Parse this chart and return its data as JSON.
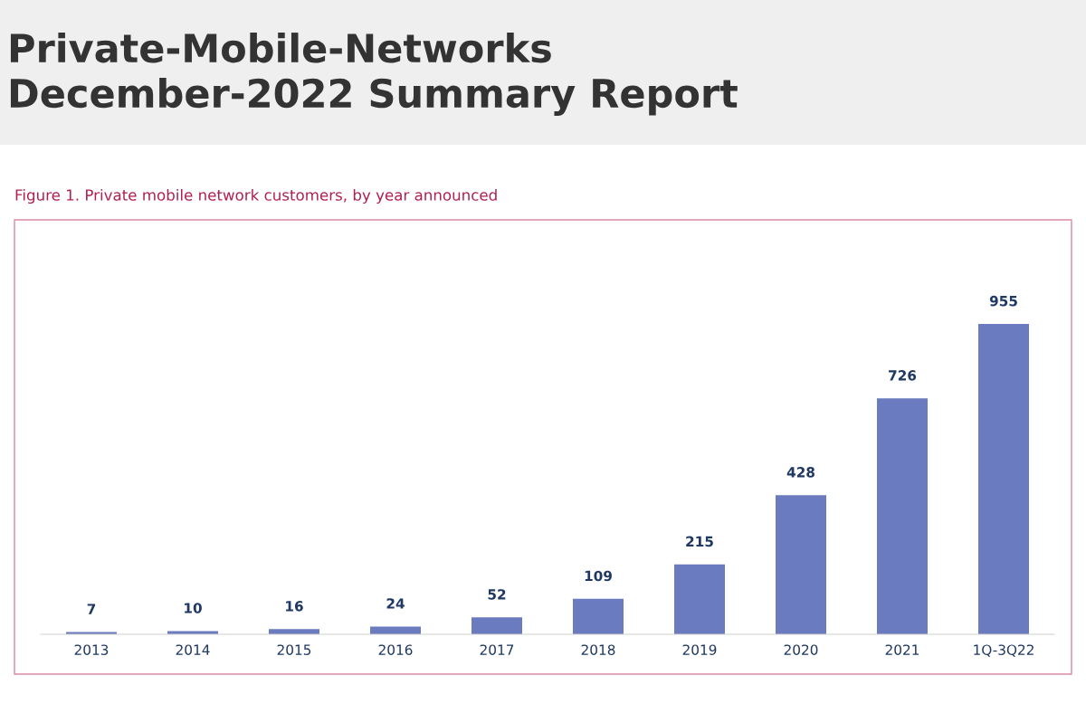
{
  "chart_data": {
    "type": "bar",
    "title": "Private-Mobile-Networks\nDecember-2022 Summary Report",
    "subtitle": "Figure 1. Private mobile network customers, by year announced",
    "categories": [
      "2013",
      "2014",
      "2015",
      "2016",
      "2017",
      "2018",
      "2019",
      "2020",
      "2021",
      "1Q-3Q22"
    ],
    "values": [
      7,
      10,
      16,
      24,
      52,
      109,
      215,
      428,
      726,
      955
    ],
    "color": "#6b7bbf",
    "data_labels": true,
    "grid": false,
    "legend": false
  }
}
